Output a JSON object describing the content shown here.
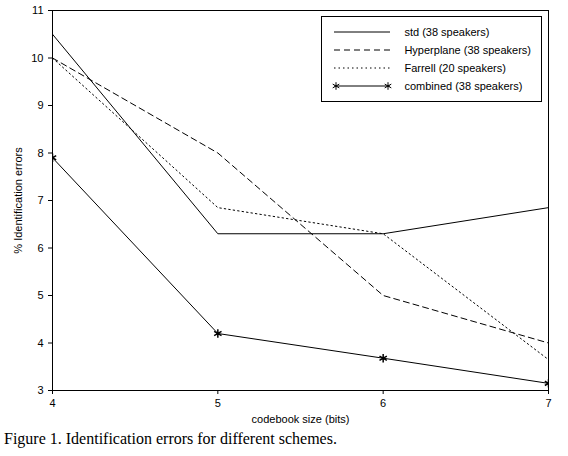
{
  "chart_data": {
    "type": "line",
    "caption": "Figure 1. Identification errors for different schemes.",
    "x_label": "codebook size (bits)",
    "y_label": "% Identification errors",
    "x": [
      4,
      5,
      6,
      7
    ],
    "series": [
      {
        "name": "std (38 speakers)",
        "color": "#000000",
        "line_style": "solid",
        "values": [
          10.5,
          6.3,
          6.3,
          6.85
        ]
      },
      {
        "name": "Hyperplane (38 speakers)",
        "color": "#000000",
        "line_style": "dashed",
        "values": [
          10.0,
          8.0,
          5.0,
          4.0
        ]
      },
      {
        "name": "Farrell (20 speakers)",
        "color": "#000000",
        "line_style": "dotted",
        "values": [
          10.0,
          6.85,
          6.3,
          3.65
        ]
      },
      {
        "name": "combined (38 speakers)",
        "color": "#000000",
        "line_style": "solid",
        "marker": "asterisk",
        "values": [
          7.9,
          4.2,
          3.68,
          3.15
        ]
      }
    ],
    "xlim": [
      4,
      7
    ],
    "xticks": [
      4,
      5,
      6,
      7
    ],
    "ylim": [
      3,
      11
    ],
    "yticks": [
      3,
      4,
      5,
      6,
      7,
      8,
      9,
      10,
      11
    ],
    "grid": false,
    "legend": "top-right"
  }
}
